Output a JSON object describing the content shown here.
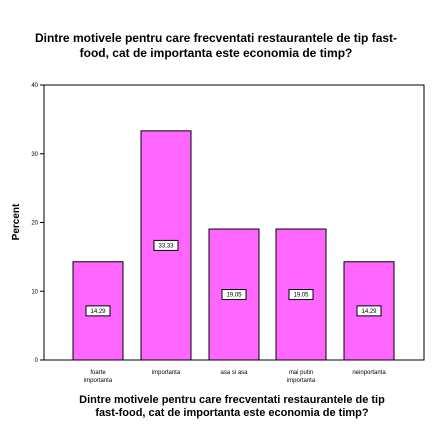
{
  "chart_data": {
    "type": "bar",
    "title_lines": [
      "Dintre motivele pentru care frecventati restaurantele de tip fast-",
      "food, cat de importanta este economia de timp?"
    ],
    "categories": [
      [
        "foarte",
        "importanta"
      ],
      [
        "importanta"
      ],
      [
        "asa si asa"
      ],
      [
        "mai putin",
        "importanta"
      ],
      [
        "neinportanta"
      ]
    ],
    "values": [
      14.29,
      33.33,
      19.05,
      19.05,
      14.29
    ],
    "data_labels": [
      "14,29",
      "33,33",
      "19,05",
      "19,05",
      "14,29"
    ],
    "ylabel": "Percent",
    "xlabel_lines": [
      "Dintre motivele pentru care frecventati restaurantele de tip",
      "fast-food, cat de importanta este economia de timp?"
    ],
    "ylim": [
      0,
      40
    ],
    "yticks": [
      0,
      10,
      20,
      30,
      40
    ],
    "grid": false,
    "bar_color": "#ff66ff",
    "bar_edge_color": "#000000"
  }
}
